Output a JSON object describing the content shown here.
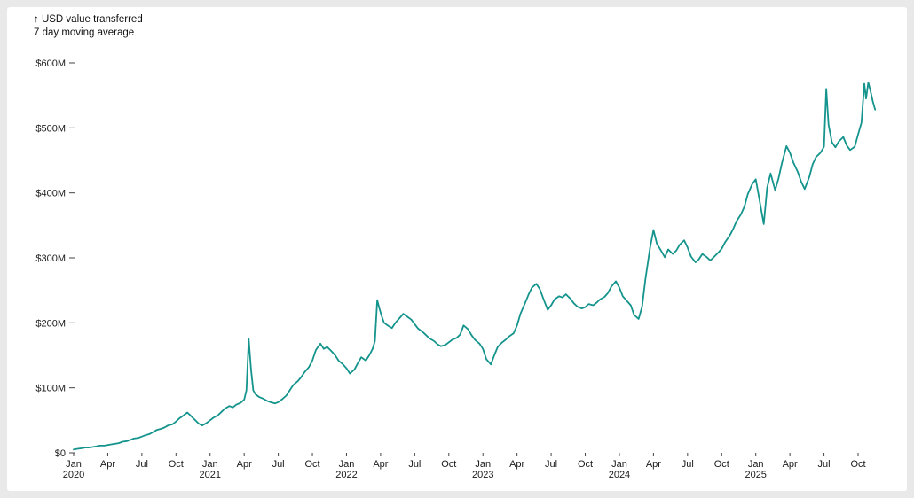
{
  "page": {
    "background_color": "#e9e9e9",
    "card_background_color": "#ffffff"
  },
  "legend": {
    "line1": "↑ USD value transferred",
    "line2": "7 day moving average"
  },
  "chart_data": {
    "type": "line",
    "title": "USD value transferred",
    "subtitle": "7 day moving average",
    "legend_position": "top-left",
    "grid": false,
    "line_color": "#14948c",
    "axis_text_color": "#1a1a1a",
    "tick_mark_color": "#444444",
    "y_unit": "USD millions",
    "ylim": [
      0,
      600
    ],
    "xlim": [
      0,
      69
    ],
    "x_unit": "months since Jan 2020",
    "y_ticks": [
      {
        "v": 0,
        "label": "$0"
      },
      {
        "v": 100,
        "label": "$100M"
      },
      {
        "v": 200,
        "label": "$200M"
      },
      {
        "v": 300,
        "label": "$300M"
      },
      {
        "v": 400,
        "label": "$400M"
      },
      {
        "v": 500,
        "label": "$500M"
      },
      {
        "v": 600,
        "label": "$600M"
      }
    ],
    "x_ticks": [
      {
        "m": 0,
        "label": "Jan",
        "year": "2020"
      },
      {
        "m": 3,
        "label": "Apr"
      },
      {
        "m": 6,
        "label": "Jul"
      },
      {
        "m": 9,
        "label": "Oct"
      },
      {
        "m": 12,
        "label": "Jan",
        "year": "2021"
      },
      {
        "m": 15,
        "label": "Apr"
      },
      {
        "m": 18,
        "label": "Jul"
      },
      {
        "m": 21,
        "label": "Oct"
      },
      {
        "m": 24,
        "label": "Jan",
        "year": "2022"
      },
      {
        "m": 27,
        "label": "Apr"
      },
      {
        "m": 30,
        "label": "Jul"
      },
      {
        "m": 33,
        "label": "Oct"
      },
      {
        "m": 36,
        "label": "Jan",
        "year": "2023"
      },
      {
        "m": 39,
        "label": "Apr"
      },
      {
        "m": 42,
        "label": "Jul"
      },
      {
        "m": 45,
        "label": "Oct"
      },
      {
        "m": 48,
        "label": "Jan",
        "year": "2024"
      },
      {
        "m": 51,
        "label": "Apr"
      },
      {
        "m": 54,
        "label": "Jul"
      },
      {
        "m": 57,
        "label": "Oct"
      },
      {
        "m": 60,
        "label": "Jan",
        "year": "2025"
      },
      {
        "m": 63,
        "label": "Apr"
      },
      {
        "m": 66,
        "label": "Jul"
      },
      {
        "m": 69,
        "label": "Oct"
      }
    ],
    "series": [
      {
        "name": "7 day moving average",
        "points": [
          [
            0,
            5
          ],
          [
            0.3,
            6
          ],
          [
            0.7,
            7
          ],
          [
            1,
            8
          ],
          [
            1.3,
            8
          ],
          [
            1.7,
            9
          ],
          [
            2,
            10
          ],
          [
            2.3,
            11
          ],
          [
            2.7,
            11
          ],
          [
            3,
            12
          ],
          [
            3.3,
            13
          ],
          [
            3.7,
            14
          ],
          [
            4,
            15
          ],
          [
            4.3,
            17
          ],
          [
            4.7,
            18
          ],
          [
            5,
            20
          ],
          [
            5.3,
            22
          ],
          [
            5.7,
            23
          ],
          [
            6,
            25
          ],
          [
            6.3,
            27
          ],
          [
            6.7,
            29
          ],
          [
            7,
            32
          ],
          [
            7.3,
            35
          ],
          [
            7.7,
            37
          ],
          [
            8,
            39
          ],
          [
            8.3,
            42
          ],
          [
            8.7,
            44
          ],
          [
            9,
            48
          ],
          [
            9.3,
            53
          ],
          [
            9.7,
            58
          ],
          [
            10,
            62
          ],
          [
            10.3,
            57
          ],
          [
            10.7,
            50
          ],
          [
            11,
            45
          ],
          [
            11.3,
            42
          ],
          [
            11.7,
            46
          ],
          [
            12,
            50
          ],
          [
            12.3,
            54
          ],
          [
            12.7,
            58
          ],
          [
            13,
            63
          ],
          [
            13.3,
            68
          ],
          [
            13.7,
            72
          ],
          [
            14,
            70
          ],
          [
            14.3,
            74
          ],
          [
            14.7,
            77
          ],
          [
            15,
            82
          ],
          [
            15.2,
            96
          ],
          [
            15.4,
            175
          ],
          [
            15.6,
            128
          ],
          [
            15.8,
            96
          ],
          [
            16,
            90
          ],
          [
            16.3,
            86
          ],
          [
            16.7,
            83
          ],
          [
            17,
            80
          ],
          [
            17.3,
            78
          ],
          [
            17.7,
            76
          ],
          [
            18,
            78
          ],
          [
            18.3,
            82
          ],
          [
            18.7,
            88
          ],
          [
            19,
            96
          ],
          [
            19.3,
            104
          ],
          [
            19.7,
            110
          ],
          [
            20,
            116
          ],
          [
            20.3,
            124
          ],
          [
            20.7,
            132
          ],
          [
            21,
            142
          ],
          [
            21.3,
            158
          ],
          [
            21.7,
            168
          ],
          [
            22,
            160
          ],
          [
            22.3,
            163
          ],
          [
            22.7,
            156
          ],
          [
            23,
            150
          ],
          [
            23.3,
            142
          ],
          [
            23.7,
            136
          ],
          [
            24,
            130
          ],
          [
            24.3,
            122
          ],
          [
            24.7,
            128
          ],
          [
            25,
            138
          ],
          [
            25.3,
            147
          ],
          [
            25.7,
            142
          ],
          [
            26,
            150
          ],
          [
            26.3,
            160
          ],
          [
            26.5,
            172
          ],
          [
            26.7,
            235
          ],
          [
            26.9,
            222
          ],
          [
            27.1,
            210
          ],
          [
            27.3,
            200
          ],
          [
            27.7,
            195
          ],
          [
            28,
            192
          ],
          [
            28.3,
            200
          ],
          [
            28.7,
            208
          ],
          [
            29,
            214
          ],
          [
            29.3,
            210
          ],
          [
            29.7,
            205
          ],
          [
            30,
            198
          ],
          [
            30.3,
            191
          ],
          [
            30.7,
            186
          ],
          [
            31,
            181
          ],
          [
            31.3,
            176
          ],
          [
            31.7,
            172
          ],
          [
            32,
            167
          ],
          [
            32.3,
            164
          ],
          [
            32.7,
            166
          ],
          [
            33,
            170
          ],
          [
            33.3,
            174
          ],
          [
            33.7,
            177
          ],
          [
            34,
            182
          ],
          [
            34.3,
            196
          ],
          [
            34.7,
            190
          ],
          [
            35,
            181
          ],
          [
            35.3,
            174
          ],
          [
            35.7,
            168
          ],
          [
            36,
            160
          ],
          [
            36.3,
            144
          ],
          [
            36.7,
            136
          ],
          [
            37,
            150
          ],
          [
            37.3,
            163
          ],
          [
            37.7,
            170
          ],
          [
            38,
            174
          ],
          [
            38.3,
            179
          ],
          [
            38.7,
            184
          ],
          [
            39,
            196
          ],
          [
            39.3,
            214
          ],
          [
            39.7,
            230
          ],
          [
            40,
            243
          ],
          [
            40.3,
            254
          ],
          [
            40.7,
            260
          ],
          [
            41,
            252
          ],
          [
            41.3,
            238
          ],
          [
            41.7,
            220
          ],
          [
            42,
            227
          ],
          [
            42.3,
            236
          ],
          [
            42.7,
            241
          ],
          [
            43,
            239
          ],
          [
            43.3,
            244
          ],
          [
            43.7,
            237
          ],
          [
            44,
            230
          ],
          [
            44.3,
            225
          ],
          [
            44.7,
            222
          ],
          [
            45,
            224
          ],
          [
            45.3,
            229
          ],
          [
            45.7,
            227
          ],
          [
            46,
            231
          ],
          [
            46.3,
            236
          ],
          [
            46.7,
            240
          ],
          [
            47,
            246
          ],
          [
            47.3,
            256
          ],
          [
            47.7,
            264
          ],
          [
            48,
            254
          ],
          [
            48.3,
            241
          ],
          [
            48.7,
            233
          ],
          [
            49,
            227
          ],
          [
            49.3,
            212
          ],
          [
            49.7,
            206
          ],
          [
            50,
            225
          ],
          [
            50.3,
            268
          ],
          [
            50.7,
            315
          ],
          [
            51,
            343
          ],
          [
            51.3,
            322
          ],
          [
            51.7,
            310
          ],
          [
            52,
            301
          ],
          [
            52.3,
            313
          ],
          [
            52.7,
            306
          ],
          [
            53,
            311
          ],
          [
            53.3,
            320
          ],
          [
            53.7,
            327
          ],
          [
            54,
            316
          ],
          [
            54.3,
            302
          ],
          [
            54.7,
            293
          ],
          [
            55,
            298
          ],
          [
            55.3,
            306
          ],
          [
            55.7,
            301
          ],
          [
            56,
            296
          ],
          [
            56.3,
            301
          ],
          [
            56.7,
            308
          ],
          [
            57,
            314
          ],
          [
            57.3,
            324
          ],
          [
            57.7,
            334
          ],
          [
            58,
            344
          ],
          [
            58.3,
            356
          ],
          [
            58.7,
            367
          ],
          [
            59,
            379
          ],
          [
            59.3,
            398
          ],
          [
            59.7,
            414
          ],
          [
            60,
            421
          ],
          [
            60.3,
            392
          ],
          [
            60.7,
            352
          ],
          [
            61,
            408
          ],
          [
            61.3,
            430
          ],
          [
            61.7,
            404
          ],
          [
            62,
            422
          ],
          [
            62.3,
            446
          ],
          [
            62.7,
            472
          ],
          [
            63,
            462
          ],
          [
            63.3,
            447
          ],
          [
            63.7,
            432
          ],
          [
            64,
            417
          ],
          [
            64.3,
            406
          ],
          [
            64.7,
            424
          ],
          [
            65,
            444
          ],
          [
            65.3,
            455
          ],
          [
            65.7,
            462
          ],
          [
            66,
            471
          ],
          [
            66.2,
            560
          ],
          [
            66.4,
            505
          ],
          [
            66.7,
            478
          ],
          [
            67,
            470
          ],
          [
            67.3,
            479
          ],
          [
            67.7,
            486
          ],
          [
            68,
            473
          ],
          [
            68.3,
            466
          ],
          [
            68.7,
            471
          ],
          [
            69,
            490
          ],
          [
            69.3,
            508
          ],
          [
            69.55,
            568
          ],
          [
            69.7,
            545
          ],
          [
            69.9,
            570
          ],
          [
            70.1,
            556
          ],
          [
            70.3,
            540
          ],
          [
            70.5,
            528
          ]
        ]
      }
    ]
  }
}
